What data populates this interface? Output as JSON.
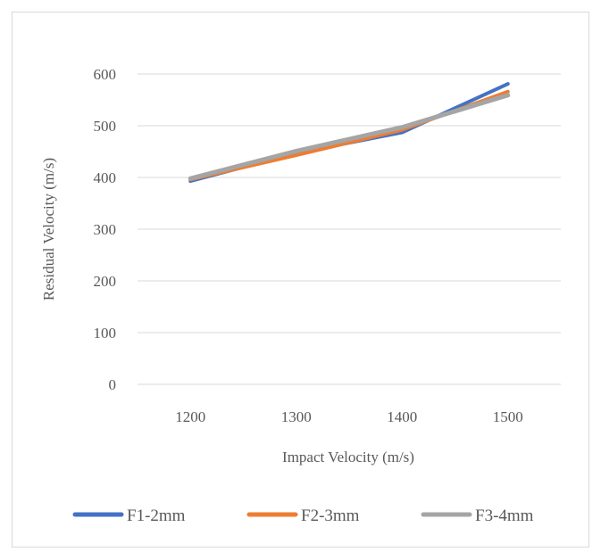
{
  "chart_data": {
    "type": "line",
    "title": "",
    "xlabel": "Impact Velocity (m/s)",
    "ylabel": "Residual Velocity (m/s)",
    "categories": [
      "1200",
      "1300",
      "1400",
      "1500"
    ],
    "ylim": [
      0,
      600
    ],
    "yticks": [
      "0",
      "100",
      "200",
      "300",
      "400",
      "500",
      "600"
    ],
    "grid": "horizontal",
    "legend_position": "bottom",
    "series": [
      {
        "name": "F1-2mm",
        "color": "#4472C4",
        "values": [
          393,
          447,
          487,
          581
        ]
      },
      {
        "name": "F2-3mm",
        "color": "#ED7D31",
        "values": [
          396,
          443,
          492,
          566
        ]
      },
      {
        "name": "F3-4mm",
        "color": "#A5A5A5",
        "values": [
          398,
          451,
          497,
          559
        ]
      }
    ]
  }
}
